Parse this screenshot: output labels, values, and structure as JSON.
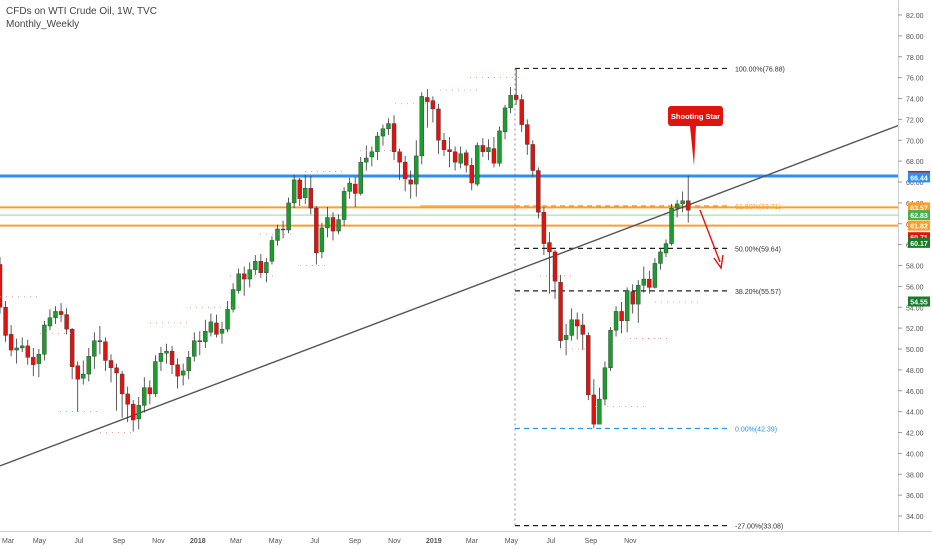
{
  "header": {
    "title": "CFDs on WTI Crude Oil, 1W, TVC",
    "subtitle": "Monthly_Weekly"
  },
  "annotation": {
    "label": "Shooting Star"
  },
  "colors": {
    "up": "#1b9c2c",
    "down": "#e0140f",
    "blue_level": "#2e8ff2",
    "orange_level": "#ff9d2a",
    "green_level": "#93d9a3",
    "trendline": "#555555",
    "fib_line": "#222222",
    "fib_zero": "#2196f3"
  },
  "chart_data": {
    "type": "candlestick",
    "title": "CFDs on WTI Crude Oil, 1W, TVC",
    "ylim": [
      33.0,
      83.0
    ],
    "xlim": [
      "2016-03-01",
      "2019-12-20"
    ],
    "x_ticks": [
      {
        "label": "Mar",
        "date": "2016-03-01"
      },
      {
        "label": "May",
        "date": "2016-05-01"
      },
      {
        "label": "Jul",
        "date": "2016-07-01"
      },
      {
        "label": "Sep",
        "date": "2016-09-01"
      },
      {
        "label": "Nov",
        "date": "2016-11-01"
      },
      {
        "label": "2018",
        "date": "2017-01-01"
      },
      {
        "label": "Mar",
        "date": "2017-03-01"
      },
      {
        "label": "May",
        "date": "2017-05-01"
      },
      {
        "label": "Jul",
        "date": "2017-07-01"
      },
      {
        "label": "Sep",
        "date": "2017-09-01"
      },
      {
        "label": "Nov",
        "date": "2017-11-01"
      },
      {
        "label": "2019",
        "date": "2018-01-01"
      },
      {
        "label": "Mar",
        "date": "2018-03-01"
      },
      {
        "label": "May",
        "date": "2018-05-01"
      },
      {
        "label": "Jul",
        "date": "2018-07-01"
      },
      {
        "label": "Sep",
        "date": "2018-09-01"
      },
      {
        "label": "Nov",
        "date": "2018-11-01"
      }
    ],
    "y_ticks": [
      34,
      36,
      38,
      40,
      42,
      44,
      46,
      48,
      50,
      52,
      54,
      56,
      58,
      60,
      62,
      64,
      66,
      68,
      70,
      72,
      74,
      76,
      78,
      80,
      82
    ],
    "candles": [
      [
        58.1,
        54.0,
        58.8,
        53.4
      ],
      [
        54.0,
        51.3,
        54.6,
        50.7
      ],
      [
        51.4,
        49.9,
        52.3,
        49.3
      ],
      [
        49.9,
        50.1,
        51.0,
        48.6
      ],
      [
        50.1,
        50.3,
        51.1,
        49.7
      ],
      [
        50.3,
        49.2,
        50.9,
        48.5
      ],
      [
        49.2,
        48.5,
        50.1,
        47.4
      ],
      [
        48.6,
        49.5,
        50.0,
        47.3
      ],
      [
        49.5,
        52.3,
        52.7,
        48.9
      ],
      [
        52.2,
        53.0,
        53.8,
        51.8
      ],
      [
        53.0,
        53.6,
        54.1,
        52.4
      ],
      [
        53.6,
        53.3,
        54.4,
        52.6
      ],
      [
        53.3,
        51.9,
        53.9,
        51.4
      ],
      [
        51.9,
        48.3,
        52.0,
        47.1
      ],
      [
        48.4,
        47.1,
        48.8,
        44.0
      ],
      [
        47.2,
        47.6,
        48.9,
        46.6
      ],
      [
        47.6,
        49.3,
        50.1,
        46.9
      ],
      [
        49.3,
        50.8,
        51.6,
        48.1
      ],
      [
        50.8,
        50.7,
        52.2,
        49.5
      ],
      [
        50.7,
        48.9,
        51.1,
        47.9
      ],
      [
        48.9,
        48.2,
        49.5,
        46.8
      ],
      [
        48.2,
        47.7,
        48.6,
        44.1
      ],
      [
        47.6,
        45.7,
        47.9,
        43.4
      ],
      [
        45.7,
        44.7,
        46.4,
        43.0
      ],
      [
        44.7,
        43.2,
        45.1,
        42.1
      ],
      [
        43.3,
        44.6,
        45.4,
        42.3
      ],
      [
        44.6,
        46.3,
        47.3,
        43.9
      ],
      [
        46.3,
        45.7,
        47.0,
        44.7
      ],
      [
        45.7,
        48.8,
        49.4,
        45.4
      ],
      [
        48.8,
        49.6,
        50.2,
        47.9
      ],
      [
        49.6,
        49.8,
        50.5,
        48.6
      ],
      [
        49.8,
        48.5,
        50.3,
        47.6
      ],
      [
        48.5,
        47.4,
        49.1,
        46.2
      ],
      [
        47.5,
        47.9,
        48.6,
        46.5
      ],
      [
        47.9,
        49.2,
        49.8,
        47.1
      ],
      [
        49.3,
        50.8,
        51.6,
        48.8
      ],
      [
        50.8,
        50.7,
        51.7,
        49.4
      ],
      [
        50.7,
        51.7,
        52.8,
        50.1
      ],
      [
        51.6,
        52.6,
        53.4,
        51.2
      ],
      [
        52.5,
        51.4,
        53.3,
        51.1
      ],
      [
        51.5,
        51.9,
        52.6,
        50.5
      ],
      [
        51.9,
        53.8,
        54.6,
        51.6
      ],
      [
        53.8,
        55.7,
        56.3,
        53.5
      ],
      [
        55.6,
        57.2,
        57.7,
        55.3
      ],
      [
        57.2,
        56.7,
        57.9,
        55.1
      ],
      [
        56.7,
        57.6,
        58.3,
        55.9
      ],
      [
        57.6,
        58.4,
        59.0,
        57.1
      ],
      [
        58.4,
        57.3,
        59.1,
        56.8
      ],
      [
        57.3,
        58.3,
        58.7,
        56.4
      ],
      [
        58.4,
        60.4,
        60.8,
        58.1
      ],
      [
        60.4,
        61.5,
        61.9,
        59.9
      ],
      [
        61.5,
        61.4,
        62.3,
        60.6
      ],
      [
        61.4,
        64.0,
        64.5,
        61.1
      ],
      [
        64.0,
        66.2,
        66.7,
        63.5
      ],
      [
        66.2,
        64.4,
        66.4,
        63.7
      ],
      [
        64.5,
        65.4,
        66.7,
        63.9
      ],
      [
        65.4,
        63.5,
        66.6,
        62.9
      ],
      [
        63.5,
        59.2,
        63.7,
        58.1
      ],
      [
        59.3,
        61.6,
        62.1,
        58.7
      ],
      [
        61.6,
        62.6,
        63.6,
        60.7
      ],
      [
        62.6,
        61.3,
        63.1,
        60.4
      ],
      [
        61.3,
        62.4,
        62.9,
        61.0
      ],
      [
        62.4,
        65.1,
        65.5,
        61.8
      ],
      [
        65.1,
        65.9,
        66.4,
        64.4
      ],
      [
        65.8,
        64.9,
        66.5,
        63.6
      ],
      [
        64.9,
        67.9,
        68.4,
        64.7
      ],
      [
        67.9,
        68.3,
        69.5,
        67.1
      ],
      [
        68.4,
        68.9,
        69.4,
        67.5
      ],
      [
        68.9,
        70.4,
        70.8,
        68.1
      ],
      [
        70.4,
        71.1,
        71.5,
        69.5
      ],
      [
        71.1,
        71.6,
        72.1,
        70.5
      ],
      [
        71.6,
        68.9,
        72.4,
        68.1
      ],
      [
        68.9,
        67.9,
        69.2,
        66.2
      ],
      [
        67.9,
        66.3,
        68.5,
        65.1
      ],
      [
        66.2,
        65.8,
        67.1,
        64.4
      ],
      [
        65.8,
        68.5,
        70.0,
        64.6
      ],
      [
        68.5,
        74.2,
        74.6,
        67.7
      ],
      [
        74.1,
        73.7,
        74.9,
        71.2
      ],
      [
        73.8,
        73.0,
        74.2,
        71.7
      ],
      [
        73.0,
        70.0,
        73.5,
        68.7
      ],
      [
        70.0,
        69.1,
        70.7,
        68.5
      ],
      [
        69.1,
        68.9,
        70.3,
        67.4
      ],
      [
        68.9,
        67.9,
        69.4,
        67.1
      ],
      [
        67.8,
        68.7,
        69.4,
        67.3
      ],
      [
        68.8,
        67.6,
        69.1,
        66.9
      ],
      [
        67.6,
        65.9,
        68.3,
        65.2
      ],
      [
        65.8,
        69.5,
        69.8,
        65.6
      ],
      [
        69.5,
        68.9,
        70.2,
        68.4
      ],
      [
        68.9,
        69.3,
        70.1,
        68.1
      ],
      [
        69.2,
        67.8,
        70.3,
        67.4
      ],
      [
        67.8,
        70.9,
        71.3,
        67.5
      ],
      [
        70.8,
        73.1,
        73.4,
        70.1
      ],
      [
        73.1,
        74.3,
        75.1,
        72.6
      ],
      [
        74.3,
        73.9,
        76.9,
        73.4
      ],
      [
        73.9,
        71.5,
        74.4,
        70.8
      ],
      [
        71.5,
        69.6,
        72.0,
        68.6
      ],
      [
        69.6,
        67.1,
        70.0,
        66.5
      ],
      [
        67.1,
        63.1,
        67.4,
        62.5
      ],
      [
        63.1,
        60.1,
        63.6,
        59.0
      ],
      [
        60.2,
        59.3,
        61.2,
        55.3
      ],
      [
        59.3,
        56.5,
        59.5,
        54.8
      ],
      [
        56.4,
        50.8,
        57.1,
        50.1
      ],
      [
        50.9,
        51.3,
        52.4,
        49.4
      ],
      [
        51.3,
        52.8,
        53.9,
        50.8
      ],
      [
        52.8,
        52.2,
        53.5,
        50.9
      ],
      [
        52.3,
        51.4,
        53.4,
        49.9
      ],
      [
        51.3,
        45.6,
        51.6,
        45.1
      ],
      [
        45.6,
        42.8,
        47.1,
        42.4
      ],
      [
        42.8,
        45.2,
        46.3,
        43.4
      ],
      [
        45.2,
        48.2,
        48.8,
        44.6
      ],
      [
        48.2,
        51.8,
        52.1,
        47.9
      ],
      [
        51.8,
        53.6,
        54.1,
        51.2
      ],
      [
        53.6,
        52.7,
        54.5,
        51.5
      ],
      [
        52.7,
        55.6,
        55.9,
        51.6
      ],
      [
        55.5,
        54.3,
        56.2,
        53.4
      ],
      [
        54.3,
        56.1,
        56.6,
        52.5
      ],
      [
        56.1,
        56.7,
        57.9,
        55.4
      ],
      [
        56.7,
        55.9,
        57.5,
        55.3
      ],
      [
        55.9,
        58.2,
        58.7,
        55.8
      ],
      [
        58.2,
        59.3,
        59.6,
        57.6
      ],
      [
        59.2,
        60.1,
        60.5,
        58.8
      ],
      [
        60.1,
        63.5,
        63.9,
        59.9
      ],
      [
        63.5,
        63.9,
        64.3,
        62.6
      ],
      [
        63.9,
        64.2,
        65.1,
        63.1
      ],
      [
        64.2,
        63.3,
        66.6,
        62.1
      ]
    ],
    "horizontal_levels": [
      {
        "price": 66.58,
        "label": "66.58",
        "color": "#2e8ff2"
      },
      {
        "price": 63.57,
        "label": "63.57",
        "color": "#ff9d2a"
      },
      {
        "price": 62.83,
        "label": "62.83",
        "color": "#93d9a3"
      },
      {
        "price": 61.82,
        "label": "61.82",
        "color": "#ff9d2a"
      }
    ],
    "price_badges": [
      {
        "price": 66.58,
        "label": "66.58",
        "color": "#e0140f"
      },
      {
        "price": 66.44,
        "label": "66.44",
        "color": "#2e8ff2"
      },
      {
        "price": 63.57,
        "label": "63.57",
        "color": "#ff9d2a"
      },
      {
        "price": 62.83,
        "label": "62.83",
        "color": "#4caf50"
      },
      {
        "price": 61.82,
        "label": "61.82",
        "color": "#ff9d2a"
      },
      {
        "price": 60.71,
        "label": "60.71",
        "color": "#e0140f"
      },
      {
        "price": 60.17,
        "label": "60.17",
        "color": "#1b7a2c"
      },
      {
        "price": 54.55,
        "label": "54.55",
        "color": "#1b7a2c"
      }
    ],
    "fib_levels": [
      {
        "price": 76.88,
        "label": "100.00%(76.88)"
      },
      {
        "price": 63.71,
        "label": "61.80%(63.71)"
      },
      {
        "price": 59.64,
        "label": "50.00%(59.64)"
      },
      {
        "price": 55.57,
        "label": "38.20%(55.57)"
      },
      {
        "price": 42.39,
        "label": "0.00%(42.39)"
      },
      {
        "price": 33.08,
        "label": "-27.00%(33.08)"
      }
    ],
    "trendline": {
      "from": [
        "2016-03-01",
        38.8
      ],
      "to": [
        "2019-12-20",
        71.4
      ]
    }
  }
}
